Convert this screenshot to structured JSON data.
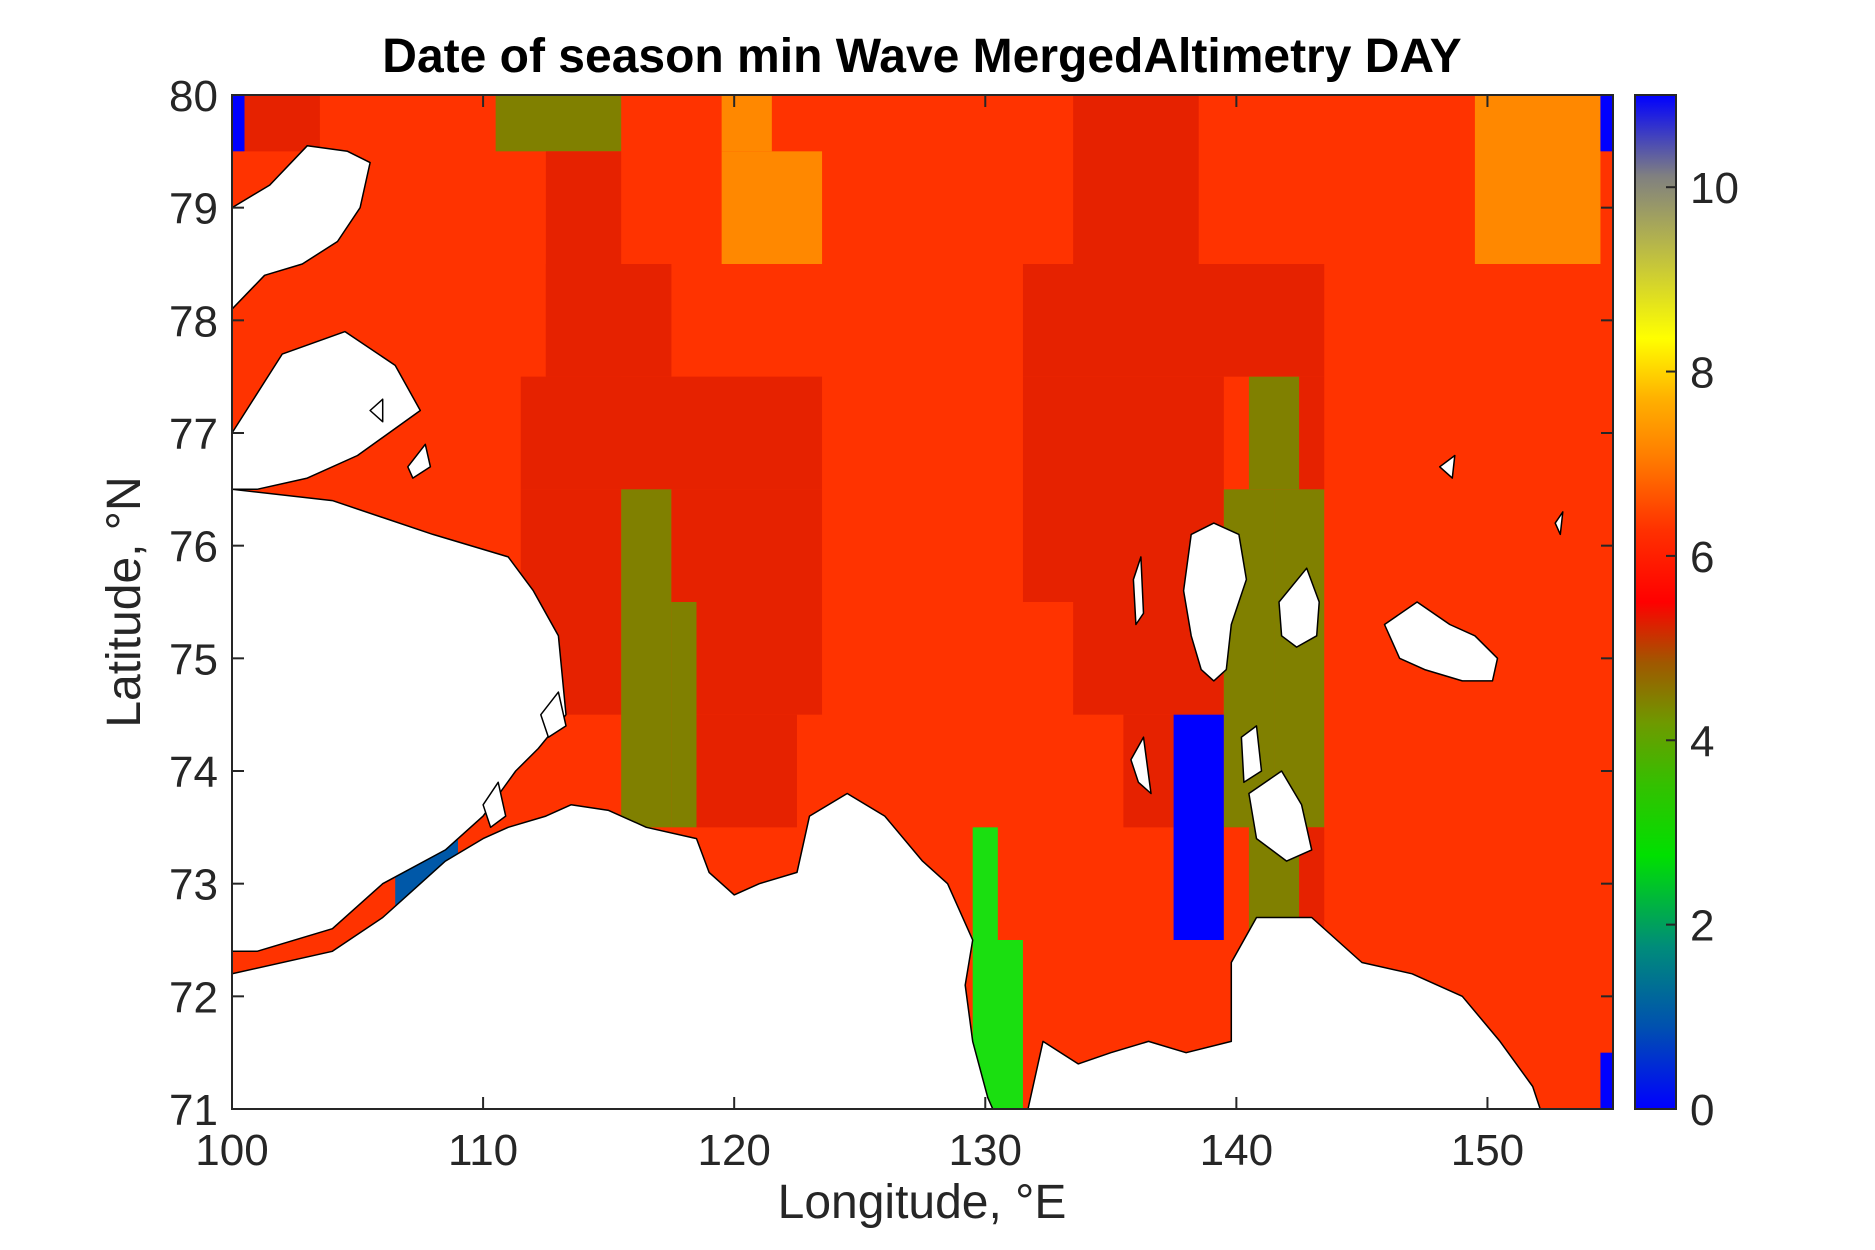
{
  "chart_data": {
    "type": "heatmap",
    "title": "Date of season min Wave MergedAltimetry DAY",
    "xlabel": "Longitude, °E",
    "ylabel": "Latitude, °N",
    "xlim": [
      100,
      155
    ],
    "ylim": [
      71,
      80
    ],
    "xticks": [
      "100",
      "110",
      "120",
      "130",
      "140",
      "150"
    ],
    "yticks": [
      "71",
      "72",
      "73",
      "74",
      "75",
      "76",
      "77",
      "78",
      "79",
      "80"
    ],
    "colorbar": {
      "range": [
        0,
        11
      ],
      "ticks": [
        "0",
        "2",
        "4",
        "6",
        "8",
        "10"
      ],
      "colormap": "jet"
    },
    "colors": {
      "land": "#ffffff",
      "dominant": "#ff3300"
    },
    "cells": [
      {
        "lon": [
          100,
          155
        ],
        "lat": [
          71,
          80
        ],
        "value": 6.3
      },
      {
        "lon": [
          100,
          100.5
        ],
        "lat": [
          79.5,
          80
        ],
        "value": 0.2
      },
      {
        "lon": [
          100.5,
          103.5
        ],
        "lat": [
          79.5,
          80
        ],
        "value": 5.6
      },
      {
        "lon": [
          110.5,
          115.5
        ],
        "lat": [
          79.5,
          80
        ],
        "value": 4.2
      },
      {
        "lon": [
          119.5,
          121.5
        ],
        "lat": [
          79.5,
          80
        ],
        "value": 6.9
      },
      {
        "lon": [
          119.5,
          123.5
        ],
        "lat": [
          78.5,
          79.5
        ],
        "value": 6.9
      },
      {
        "lon": [
          133.5,
          138.5
        ],
        "lat": [
          78.5,
          80
        ],
        "value": 5.6
      },
      {
        "lon": [
          149.5,
          154.5
        ],
        "lat": [
          78.5,
          80
        ],
        "value": 6.9
      },
      {
        "lon": [
          154.5,
          155
        ],
        "lat": [
          79.5,
          80
        ],
        "value": 0.2
      },
      {
        "lon": [
          112.5,
          115.5
        ],
        "lat": [
          77.5,
          79.5
        ],
        "value": 5.6
      },
      {
        "lon": [
          112.5,
          117.5
        ],
        "lat": [
          77.5,
          78.5
        ],
        "value": 5.6
      },
      {
        "lon": [
          111.5,
          123.5
        ],
        "lat": [
          76.5,
          77.5
        ],
        "value": 5.6
      },
      {
        "lon": [
          111.5,
          115.5
        ],
        "lat": [
          74.5,
          76.5
        ],
        "value": 5.6
      },
      {
        "lon": [
          115.5,
          117.5
        ],
        "lat": [
          73.5,
          76.5
        ],
        "value": 4.2
      },
      {
        "lon": [
          117.5,
          118.5
        ],
        "lat": [
          73.5,
          75.5
        ],
        "value": 4.2
      },
      {
        "lon": [
          117.5,
          123.5
        ],
        "lat": [
          75.5,
          76.5
        ],
        "value": 5.6
      },
      {
        "lon": [
          118.5,
          123.5
        ],
        "lat": [
          74.5,
          75.5
        ],
        "value": 5.6
      },
      {
        "lon": [
          118.5,
          122.5
        ],
        "lat": [
          73.5,
          74.5
        ],
        "value": 5.6
      },
      {
        "lon": [
          131.5,
          143.5
        ],
        "lat": [
          77.5,
          78.5
        ],
        "value": 5.6
      },
      {
        "lon": [
          131.5,
          139.5
        ],
        "lat": [
          75.5,
          77.5
        ],
        "value": 5.6
      },
      {
        "lon": [
          133.5,
          139.5
        ],
        "lat": [
          74.5,
          75.5
        ],
        "value": 5.6
      },
      {
        "lon": [
          135.5,
          137.5
        ],
        "lat": [
          73.5,
          74.5
        ],
        "value": 5.6
      },
      {
        "lon": [
          139.5,
          141.5
        ],
        "lat": [
          73.5,
          76.5
        ],
        "value": 4.2
      },
      {
        "lon": [
          140.5,
          142.5
        ],
        "lat": [
          76.5,
          77.5
        ],
        "value": 4.2
      },
      {
        "lon": [
          142.5,
          143.5
        ],
        "lat": [
          76.5,
          77.5
        ],
        "value": 5.6
      },
      {
        "lon": [
          141.5,
          143.5
        ],
        "lat": [
          73.5,
          76.5
        ],
        "value": 4.2
      },
      {
        "lon": [
          137.5,
          139.5
        ],
        "lat": [
          72.5,
          74.5
        ],
        "value": 0.2
      },
      {
        "lon": [
          140.5,
          142.5
        ],
        "lat": [
          72.5,
          73.5
        ],
        "value": 4.2
      },
      {
        "lon": [
          142.5,
          143.5
        ],
        "lat": [
          72.5,
          73.5
        ],
        "value": 5.6
      },
      {
        "lon": [
          129.5,
          130.5
        ],
        "lat": [
          72.5,
          73.5
        ],
        "value": 2.9
      },
      {
        "lon": [
          129.5,
          131.5
        ],
        "lat": [
          71,
          72.5
        ],
        "value": 2.9
      },
      {
        "lon": [
          154.5,
          155
        ],
        "lat": [
          71,
          71.5
        ],
        "value": 0.2
      },
      {
        "lon": [
          106.5,
          109
        ],
        "lat": [
          72.8,
          73.6
        ],
        "value": 0.9
      }
    ],
    "land_regions": [
      {
        "name": "severnaya-zemlya",
        "points": [
          [
            100,
            79.0
          ],
          [
            101.5,
            79.2
          ],
          [
            103,
            79.55
          ],
          [
            104.6,
            79.5
          ],
          [
            105.5,
            79.4
          ],
          [
            105.1,
            79.0
          ],
          [
            104.2,
            78.7
          ],
          [
            102.8,
            78.5
          ],
          [
            101.3,
            78.4
          ],
          [
            100,
            78.1
          ]
        ]
      },
      {
        "name": "bolshevik-island",
        "points": [
          [
            100,
            77.0
          ],
          [
            102,
            77.7
          ],
          [
            104.5,
            77.9
          ],
          [
            106.5,
            77.6
          ],
          [
            107.5,
            77.2
          ],
          [
            105,
            76.8
          ],
          [
            103,
            76.6
          ],
          [
            101,
            76.5
          ],
          [
            100,
            76.5
          ]
        ]
      },
      {
        "name": "taymyr",
        "points": [
          [
            100,
            76.5
          ],
          [
            104,
            76.4
          ],
          [
            108,
            76.1
          ],
          [
            111,
            75.9
          ],
          [
            112,
            75.6
          ],
          [
            113,
            75.2
          ],
          [
            113.3,
            74.5
          ],
          [
            112.2,
            74.2
          ],
          [
            111.3,
            74.0
          ],
          [
            110,
            73.6
          ],
          [
            108.5,
            73.3
          ],
          [
            106,
            73.0
          ],
          [
            104,
            72.6
          ],
          [
            101,
            72.4
          ],
          [
            100,
            72.4
          ]
        ]
      },
      {
        "name": "mainland-siberia",
        "points": [
          [
            100,
            71
          ],
          [
            100,
            72.2
          ],
          [
            104,
            72.4
          ],
          [
            106,
            72.7
          ],
          [
            108.5,
            73.2
          ],
          [
            110,
            73.4
          ],
          [
            111,
            73.5
          ],
          [
            112.5,
            73.6
          ],
          [
            113.5,
            73.7
          ],
          [
            115,
            73.65
          ],
          [
            116.5,
            73.5
          ],
          [
            118.5,
            73.4
          ],
          [
            119,
            73.1
          ],
          [
            120,
            72.9
          ],
          [
            121,
            73.0
          ],
          [
            122.5,
            73.1
          ],
          [
            123,
            73.6
          ],
          [
            124.5,
            73.8
          ],
          [
            126,
            73.6
          ],
          [
            127.5,
            73.2
          ],
          [
            128.5,
            73.0
          ],
          [
            129.5,
            72.5
          ],
          [
            129.2,
            72.1
          ],
          [
            129.5,
            71.6
          ],
          [
            130.1,
            71.1
          ],
          [
            130.3,
            71
          ],
          [
            131.7,
            71
          ],
          [
            132.3,
            71.6
          ],
          [
            133.7,
            71.4
          ],
          [
            135,
            71.5
          ],
          [
            136.5,
            71.6
          ],
          [
            138,
            71.5
          ],
          [
            139.8,
            71.6
          ],
          [
            139.8,
            72.3
          ],
          [
            140.8,
            72.7
          ],
          [
            143,
            72.7
          ],
          [
            145,
            72.3
          ],
          [
            147,
            72.2
          ],
          [
            149,
            72.0
          ],
          [
            150.5,
            71.6
          ],
          [
            151.8,
            71.2
          ],
          [
            152.1,
            71
          ],
          [
            100,
            71
          ]
        ]
      },
      {
        "name": "kotelny-island",
        "points": [
          [
            138.2,
            76.1
          ],
          [
            139.1,
            76.2
          ],
          [
            140.1,
            76.1
          ],
          [
            140.4,
            75.7
          ],
          [
            139.8,
            75.3
          ],
          [
            139.6,
            74.9
          ],
          [
            139.1,
            74.8
          ],
          [
            138.6,
            74.9
          ],
          [
            138.2,
            75.2
          ],
          [
            137.9,
            75.6
          ]
        ]
      },
      {
        "name": "faddeyevsky-island",
        "points": [
          [
            141.7,
            75.5
          ],
          [
            142.8,
            75.8
          ],
          [
            143.3,
            75.5
          ],
          [
            143.2,
            75.2
          ],
          [
            142.4,
            75.1
          ],
          [
            141.8,
            75.2
          ]
        ]
      },
      {
        "name": "new-siberia-island",
        "points": [
          [
            145.9,
            75.3
          ],
          [
            147.2,
            75.5
          ],
          [
            148.5,
            75.3
          ],
          [
            149.5,
            75.2
          ],
          [
            150.4,
            75.0
          ],
          [
            150.2,
            74.8
          ],
          [
            149.0,
            74.8
          ],
          [
            147.5,
            74.9
          ],
          [
            146.5,
            75.0
          ]
        ]
      },
      {
        "name": "belkovsky-island",
        "points": [
          [
            135.9,
            75.7
          ],
          [
            136.2,
            75.9
          ],
          [
            136.3,
            75.4
          ],
          [
            136.0,
            75.3
          ]
        ]
      },
      {
        "name": "stolbovoy-island",
        "points": [
          [
            135.8,
            74.1
          ],
          [
            136.3,
            74.3
          ],
          [
            136.6,
            73.8
          ],
          [
            136.1,
            73.9
          ]
        ]
      },
      {
        "name": "bolshoy-lyakhovsky",
        "points": [
          [
            140.5,
            73.8
          ],
          [
            141.8,
            74.0
          ],
          [
            142.6,
            73.7
          ],
          [
            143.0,
            73.3
          ],
          [
            142.0,
            73.2
          ],
          [
            140.8,
            73.4
          ]
        ]
      },
      {
        "name": "maly-lyakhovsky",
        "points": [
          [
            140.2,
            74.3
          ],
          [
            140.8,
            74.4
          ],
          [
            141.0,
            74.0
          ],
          [
            140.3,
            73.9
          ]
        ]
      },
      {
        "name": "bennett-island",
        "points": [
          [
            148.1,
            76.7
          ],
          [
            148.7,
            76.8
          ],
          [
            148.6,
            76.6
          ]
        ]
      },
      {
        "name": "jeannette-island",
        "points": [
          [
            152.7,
            76.2
          ],
          [
            153.0,
            76.3
          ],
          [
            152.9,
            76.1
          ]
        ]
      },
      {
        "name": "taymyr-island",
        "points": [
          [
            107,
            76.7
          ],
          [
            107.7,
            76.9
          ],
          [
            107.9,
            76.7
          ],
          [
            107.2,
            76.6
          ]
        ]
      },
      {
        "name": "taymyr-islet-a",
        "points": [
          [
            105.5,
            77.2
          ],
          [
            106,
            77.3
          ],
          [
            106,
            77.1
          ]
        ]
      },
      {
        "name": "taymyr-islet-b",
        "points": [
          [
            112.3,
            74.5
          ],
          [
            113,
            74.7
          ],
          [
            113.3,
            74.4
          ],
          [
            112.6,
            74.3
          ]
        ]
      },
      {
        "name": "taymyr-islet-c",
        "points": [
          [
            110,
            73.7
          ],
          [
            110.6,
            73.9
          ],
          [
            110.9,
            73.6
          ],
          [
            110.3,
            73.5
          ]
        ]
      }
    ]
  }
}
